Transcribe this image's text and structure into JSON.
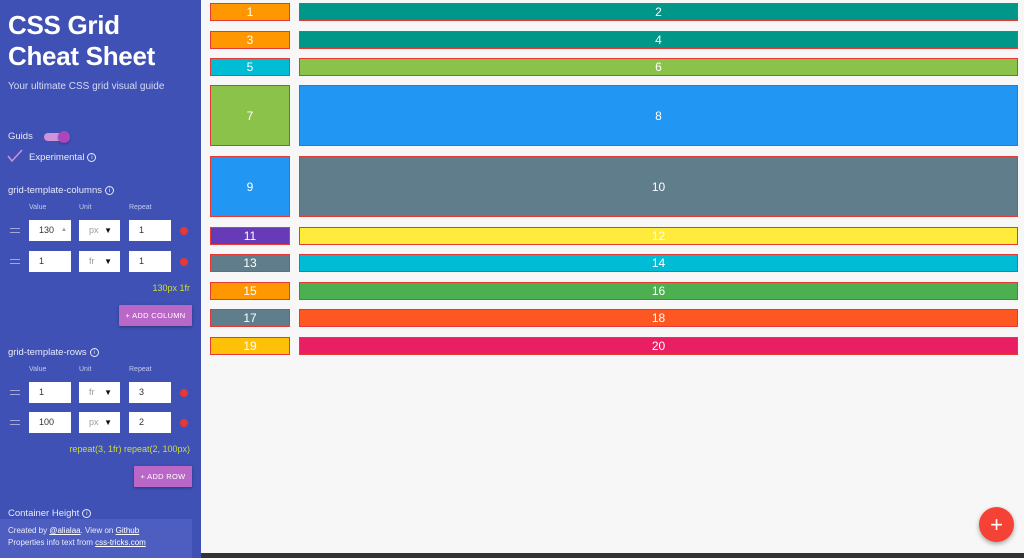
{
  "sidebar": {
    "title_line1": "CSS Grid",
    "title_line2": "Cheat Sheet",
    "subtitle": "Your ultimate CSS grid visual guide",
    "guides_label": "Guids",
    "experimental_label": "Experimental",
    "info_glyph": "i",
    "columns": {
      "label": "grid-template-columns",
      "head_value": "Value",
      "head_unit": "Unit",
      "head_repeat": "Repeat",
      "rows": [
        {
          "value": "130",
          "unit": "px",
          "repeat": "1"
        },
        {
          "value": "1",
          "unit": "fr",
          "repeat": "1"
        }
      ],
      "summary": "130px 1fr",
      "add_label": "+ ADD COLUMN"
    },
    "rows": {
      "label": "grid-template-rows",
      "head_value": "Value",
      "head_unit": "Unit",
      "head_repeat": "Repeat",
      "rows": [
        {
          "value": "1",
          "unit": "fr",
          "repeat": "3"
        },
        {
          "value": "100",
          "unit": "px",
          "repeat": "2"
        }
      ],
      "summary": "repeat(3, 1fr) repeat(2, 100px)",
      "add_label": "+ ADD ROW"
    },
    "container_height_label": "Container Height",
    "footer": {
      "created_by": "Created by ",
      "author": "@alialaa",
      "view_on": ". View on ",
      "github": "Github",
      "properties_text": "Properties info text from ",
      "source": "css-tricks.com"
    }
  },
  "grid": {
    "cells": [
      {
        "label": "1",
        "color": "#ff9800"
      },
      {
        "label": "2",
        "color": "#009688"
      },
      {
        "label": "3",
        "color": "#ff9800"
      },
      {
        "label": "4",
        "color": "#009688"
      },
      {
        "label": "5",
        "color": "#00bcd4"
      },
      {
        "label": "6",
        "color": "#8bc34a"
      },
      {
        "label": "7",
        "color": "#8bc34a"
      },
      {
        "label": "8",
        "color": "#2196f3"
      },
      {
        "label": "9",
        "color": "#2196f3"
      },
      {
        "label": "10",
        "color": "#607d8b"
      },
      {
        "label": "11",
        "color": "#673ab7"
      },
      {
        "label": "12",
        "color": "#ffeb3b"
      },
      {
        "label": "13",
        "color": "#607d8b"
      },
      {
        "label": "14",
        "color": "#00bcd4"
      },
      {
        "label": "15",
        "color": "#ff9800"
      },
      {
        "label": "16",
        "color": "#4caf50"
      },
      {
        "label": "17",
        "color": "#607d8b"
      },
      {
        "label": "18",
        "color": "#ff5722"
      },
      {
        "label": "19",
        "color": "#ffc107"
      },
      {
        "label": "20",
        "color": "#e91e63"
      }
    ]
  },
  "fab": {
    "icon": "plus-icon",
    "glyph": "+"
  }
}
